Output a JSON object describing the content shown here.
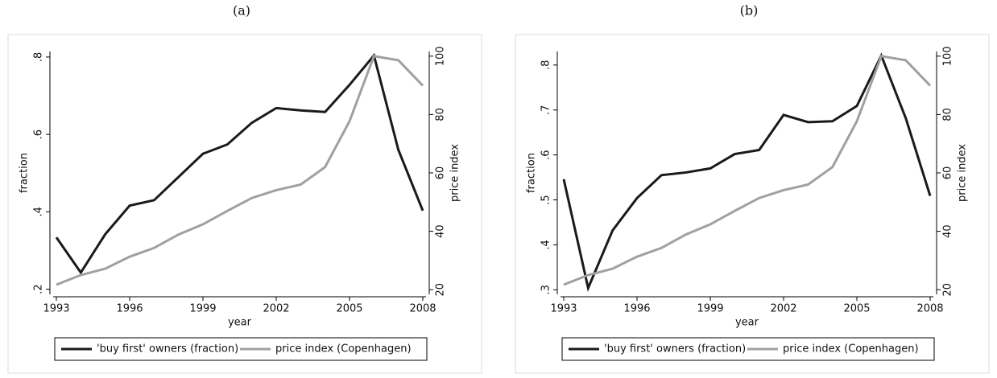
{
  "chart_data": [
    {
      "type": "line",
      "title": "(a)",
      "x_label": "year",
      "y_label": "fraction",
      "y2_label": "price index",
      "x": [
        1993,
        1994,
        1995,
        1996,
        1997,
        1998,
        1999,
        2000,
        2001,
        2002,
        2003,
        2004,
        2005,
        2006,
        2007,
        2008
      ],
      "xlim": [
        1993,
        2008
      ],
      "xticks": [
        1993,
        1996,
        1999,
        2002,
        2005,
        2008
      ],
      "ylim": [
        0.195,
        0.806
      ],
      "yticks": [
        {
          "value": 0.2,
          "label": ".2"
        },
        {
          "value": 0.4,
          "label": ".4"
        },
        {
          "value": 0.6,
          "label": ".6"
        },
        {
          "value": 0.8,
          "label": ".8"
        }
      ],
      "y2lim": [
        19.5,
        100.5
      ],
      "y2ticks": [
        20,
        40,
        60,
        80,
        100
      ],
      "series": [
        {
          "name": "'buy first' owners (fraction)",
          "color": "#1a1a1a",
          "values": [
            0.334,
            0.243,
            0.342,
            0.416,
            0.43,
            0.49,
            0.55,
            0.574,
            0.63,
            0.668,
            0.662,
            0.658,
            0.728,
            0.804,
            0.56,
            0.403
          ]
        },
        {
          "name": "price index (Copenhagen)",
          "color": "#a0a0a0",
          "axis": "y2",
          "values": [
            21.7,
            25,
            27.2,
            31.3,
            34.3,
            38.9,
            42.4,
            47,
            51.4,
            54.1,
            56,
            62,
            77.7,
            100,
            98.6,
            89.9
          ]
        }
      ]
    },
    {
      "type": "line",
      "title": "(b)",
      "x_label": "year",
      "y_label": "fraction",
      "y2_label": "price index",
      "x": [
        1993,
        1994,
        1995,
        1996,
        1997,
        1998,
        1999,
        2000,
        2001,
        2002,
        2003,
        2004,
        2005,
        2006,
        2007,
        2008
      ],
      "xlim": [
        1993,
        2008
      ],
      "xticks": [
        1993,
        1996,
        1999,
        2002,
        2005,
        2008
      ],
      "ylim": [
        0.297,
        0.823
      ],
      "yticks": [
        {
          "value": 0.3,
          "label": ".3"
        },
        {
          "value": 0.4,
          "label": ".4"
        },
        {
          "value": 0.5,
          "label": ".5"
        },
        {
          "value": 0.6,
          "label": ".6"
        },
        {
          "value": 0.7,
          "label": ".7"
        },
        {
          "value": 0.8,
          "label": ".8"
        }
      ],
      "y2lim": [
        19.5,
        100.5
      ],
      "y2ticks": [
        20,
        40,
        60,
        80,
        100
      ],
      "series": [
        {
          "name": "'buy first' owners (fraction)",
          "color": "#1a1a1a",
          "values": [
            0.546,
            0.304,
            0.432,
            0.504,
            0.555,
            0.561,
            0.57,
            0.602,
            0.611,
            0.689,
            0.673,
            0.675,
            0.709,
            0.821,
            0.682,
            0.509
          ]
        },
        {
          "name": "price index (Copenhagen)",
          "color": "#a0a0a0",
          "axis": "y2",
          "values": [
            21.7,
            25,
            27.2,
            31.3,
            34.3,
            38.9,
            42.4,
            47,
            51.4,
            54.1,
            56,
            62,
            77.7,
            100,
            98.6,
            89.9
          ]
        }
      ]
    }
  ]
}
